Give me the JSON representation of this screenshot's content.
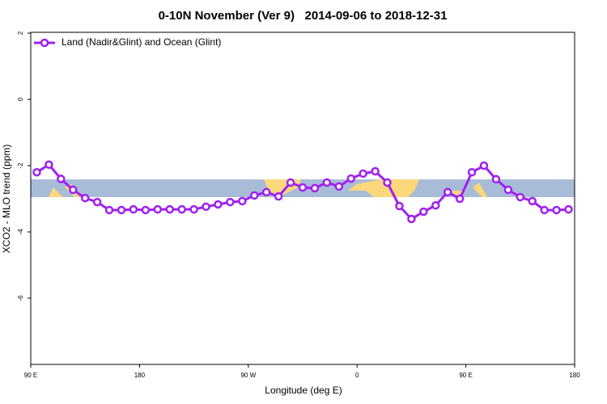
{
  "chart_data": {
    "type": "line",
    "title": "0-10N November (Ver 9)   2014-09-06 to 2018-12-31",
    "x_label": "Longitude (deg E)",
    "y_label": "XCO2 - MLO trend (ppm)",
    "xlim": [
      90,
      540
    ],
    "ylim": [
      -8,
      2
    ],
    "xticks": [
      {
        "value": 90,
        "label": "90 E"
      },
      180,
      {
        "value": 270,
        "label": "90 W"
      },
      {
        "value": 360,
        "label": "0"
      },
      {
        "value": 450,
        "label": "90 E"
      },
      {
        "value": 540,
        "label": "180"
      }
    ],
    "yticks": [
      -6,
      -4,
      -2,
      0,
      2
    ],
    "legend": "upper left",
    "x": [
      95,
      105,
      115,
      125,
      135,
      145,
      155,
      165,
      175,
      185,
      195,
      205,
      215,
      225,
      235,
      245,
      255,
      265,
      275,
      285,
      295,
      305,
      315,
      325,
      335,
      345,
      355,
      365,
      375,
      385,
      395,
      405,
      415,
      425,
      435,
      445,
      455,
      465,
      475,
      485,
      495,
      505,
      515,
      525,
      535
    ],
    "series": [
      {
        "name": "Land (Nadir&Glint) and Ocean (Glint)",
        "color": "#a020f0",
        "values": [
          -2.2,
          -1.97,
          -2.4,
          -2.73,
          -2.98,
          -3.1,
          -3.34,
          -3.34,
          -3.32,
          -3.34,
          -3.32,
          -3.32,
          -3.32,
          -3.32,
          -3.24,
          -3.17,
          -3.1,
          -3.07,
          -2.9,
          -2.8,
          -2.93,
          -2.51,
          -2.66,
          -2.68,
          -2.51,
          -2.63,
          -2.39,
          -2.24,
          -2.17,
          -2.51,
          -3.22,
          -3.61,
          -3.39,
          -3.2,
          -2.8,
          -3.0,
          -2.2,
          -2.0,
          -2.41,
          -2.73,
          -2.95,
          -3.07,
          -3.34,
          -3.34,
          -3.32
        ]
      }
    ]
  }
}
